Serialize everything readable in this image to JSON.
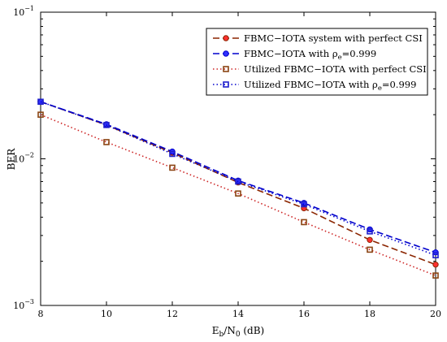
{
  "chart_data": {
    "type": "line",
    "xlabel": "E_b/N_0 (dB)",
    "xlabel_parts": {
      "main": "E",
      "sub1": "b",
      "slash": "/N",
      "sub2": "0",
      "unit": " (dB)"
    },
    "ylabel": "BER",
    "xlim": [
      8,
      20
    ],
    "ylim": [
      0.001,
      0.1
    ],
    "yscale": "log",
    "grid": false,
    "legend_position": "top-right",
    "x_ticks": [
      8,
      10,
      12,
      14,
      16,
      18,
      20
    ],
    "y_ticks": [
      {
        "value": 0.1,
        "base": "10",
        "exp": "−1"
      },
      {
        "value": 0.01,
        "base": "10",
        "exp": "−2"
      },
      {
        "value": 0.001,
        "base": "10",
        "exp": "−3"
      }
    ],
    "x": [
      8,
      10,
      12,
      14,
      16,
      18,
      20
    ],
    "series": [
      {
        "name": "FBMC−IOTA system with perfect CSI",
        "legend_parts": {
          "pre": "FBMC−IOTA system with perfect CSI",
          "sub": "",
          "post": ""
        },
        "color": "#8b2500",
        "marker_color": "#ff3030",
        "dash": "8,4",
        "marker": "circle",
        "values": [
          0.0245,
          0.017,
          0.011,
          0.0069,
          0.0046,
          0.0028,
          0.0019
        ]
      },
      {
        "name": "FBMC−IOTA with ρe=0.999",
        "legend_parts": {
          "pre": "FBMC−IOTA with ρ",
          "sub": "e",
          "post": "=0.999"
        },
        "color": "#0000cd",
        "marker_color": "#3030ff",
        "dash": "8,4",
        "marker": "circle",
        "values": [
          0.0245,
          0.0172,
          0.0112,
          0.0071,
          0.005,
          0.0033,
          0.0023
        ]
      },
      {
        "name": "Utilized FBMC−IOTA with perfect CSI",
        "legend_parts": {
          "pre": "Utilized FBMC−IOTA with perfect CSI",
          "sub": "",
          "post": ""
        },
        "color": "#cd2626",
        "marker_color": "#8b4513",
        "dash": "1.5,3",
        "marker": "square",
        "values": [
          0.02,
          0.013,
          0.0087,
          0.0058,
          0.0037,
          0.0024,
          0.0016
        ]
      },
      {
        "name": "Utilized FBMC−IOTA with ρe=0.999",
        "legend_parts": {
          "pre": "Utilized FBMC−IOTA with ρ",
          "sub": "e",
          "post": "=0.999"
        },
        "color": "#0000cd",
        "marker_color": "#2020cd",
        "dash": "1.5,3",
        "marker": "square",
        "values": [
          0.0245,
          0.017,
          0.0108,
          0.007,
          0.0049,
          0.0032,
          0.0022
        ]
      }
    ]
  }
}
